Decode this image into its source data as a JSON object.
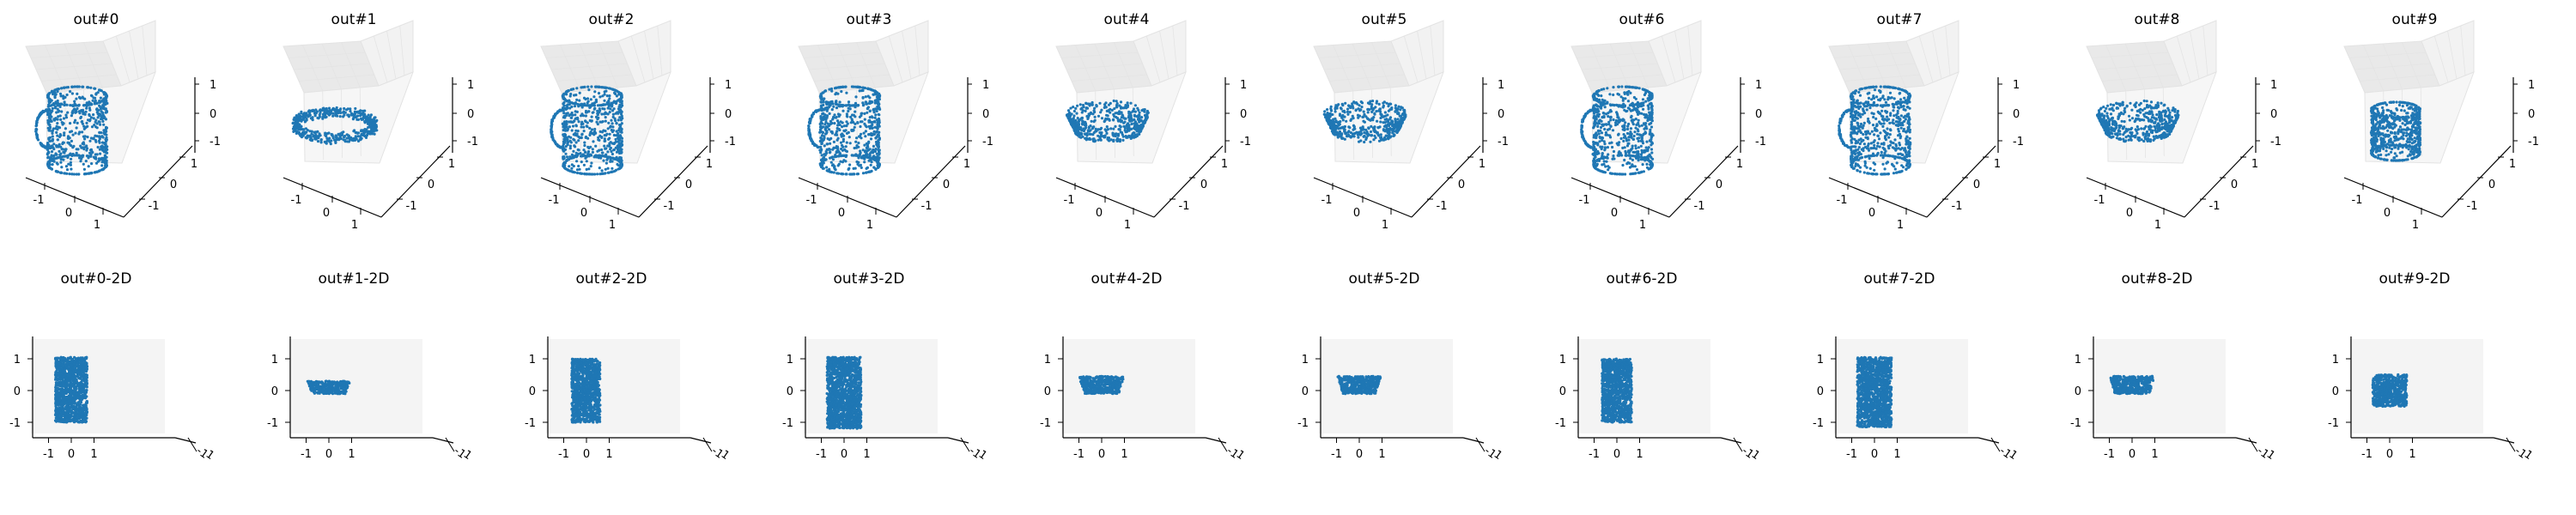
{
  "figure": {
    "background": "#ffffff",
    "marker_color": "#1f77b4",
    "pane_color_light": "#f2f2f2",
    "pane_color_dark": "#e9e9e9"
  },
  "chart_data": [
    {
      "type": "scatter",
      "projection": "3d",
      "title": "out#0",
      "shape": "mug",
      "xticks": [
        "-1",
        "0",
        "1"
      ],
      "yticks": [
        "-1",
        "0",
        "1"
      ],
      "zticks": [
        "-1",
        "0",
        "1"
      ],
      "xlim": [
        -1.5,
        1.5
      ],
      "ylim": [
        -1.5,
        1.5
      ],
      "zlim": [
        -1.5,
        1.5
      ]
    },
    {
      "type": "scatter",
      "projection": "3d",
      "title": "out#1",
      "shape": "ring",
      "xticks": [
        "-1",
        "0",
        "1"
      ],
      "yticks": [
        "-1",
        "0",
        "1"
      ],
      "zticks": [
        "-1",
        "0",
        "1"
      ],
      "xlim": [
        -1.5,
        1.5
      ],
      "ylim": [
        -1.5,
        1.5
      ],
      "zlim": [
        -1.5,
        1.5
      ]
    },
    {
      "type": "scatter",
      "projection": "3d",
      "title": "out#2",
      "shape": "mug",
      "xticks": [
        "-1",
        "0",
        "1"
      ],
      "yticks": [
        "-1",
        "0",
        "1"
      ],
      "zticks": [
        "-1",
        "0",
        "1"
      ],
      "xlim": [
        -1.5,
        1.5
      ],
      "ylim": [
        -1.5,
        1.5
      ],
      "zlim": [
        -1.5,
        1.5
      ]
    },
    {
      "type": "scatter",
      "projection": "3d",
      "title": "out#3",
      "shape": "mug",
      "xticks": [
        "-1",
        "0",
        "1"
      ],
      "yticks": [
        "-1",
        "0",
        "1"
      ],
      "zticks": [
        "-1",
        "0",
        "1"
      ],
      "xlim": [
        -1.5,
        1.5
      ],
      "ylim": [
        -1.5,
        1.5
      ],
      "zlim": [
        -1.5,
        1.5
      ]
    },
    {
      "type": "scatter",
      "projection": "3d",
      "title": "out#4",
      "shape": "bowl",
      "xticks": [
        "-1",
        "0",
        "1"
      ],
      "yticks": [
        "-1",
        "0",
        "1"
      ],
      "zticks": [
        "-1",
        "0",
        "1"
      ],
      "xlim": [
        -1.5,
        1.5
      ],
      "ylim": [
        -1.5,
        1.5
      ],
      "zlim": [
        -1.5,
        1.5
      ]
    },
    {
      "type": "scatter",
      "projection": "3d",
      "title": "out#5",
      "shape": "bowl",
      "xticks": [
        "-1",
        "0",
        "1"
      ],
      "yticks": [
        "-1",
        "0",
        "1"
      ],
      "zticks": [
        "-1",
        "0",
        "1"
      ],
      "xlim": [
        -1.5,
        1.5
      ],
      "ylim": [
        -1.5,
        1.5
      ],
      "zlim": [
        -1.5,
        1.5
      ]
    },
    {
      "type": "scatter",
      "projection": "3d",
      "title": "out#6",
      "shape": "mug",
      "xticks": [
        "-1",
        "0",
        "1"
      ],
      "yticks": [
        "-1",
        "0",
        "1"
      ],
      "zticks": [
        "-1",
        "0",
        "1"
      ],
      "xlim": [
        -1.5,
        1.5
      ],
      "ylim": [
        -1.5,
        1.5
      ],
      "zlim": [
        -1.5,
        1.5
      ]
    },
    {
      "type": "scatter",
      "projection": "3d",
      "title": "out#7",
      "shape": "mug",
      "xticks": [
        "-1",
        "0",
        "1"
      ],
      "yticks": [
        "-1",
        "0",
        "1"
      ],
      "zticks": [
        "-1",
        "0",
        "1"
      ],
      "xlim": [
        -1.5,
        1.5
      ],
      "ylim": [
        -1.5,
        1.5
      ],
      "zlim": [
        -1.5,
        1.5
      ]
    },
    {
      "type": "scatter",
      "projection": "3d",
      "title": "out#8",
      "shape": "bowl",
      "xticks": [
        "-1",
        "0",
        "1"
      ],
      "yticks": [
        "-1",
        "0",
        "1"
      ],
      "zticks": [
        "-1",
        "0",
        "1"
      ],
      "xlim": [
        -1.5,
        1.5
      ],
      "ylim": [
        -1.5,
        1.5
      ],
      "zlim": [
        -1.5,
        1.5
      ]
    },
    {
      "type": "scatter",
      "projection": "3d",
      "title": "out#9",
      "shape": "cup",
      "xticks": [
        "-1",
        "0",
        "1"
      ],
      "yticks": [
        "-1",
        "0",
        "1"
      ],
      "zticks": [
        "-1",
        "0",
        "1"
      ],
      "xlim": [
        -1.5,
        1.5
      ],
      "ylim": [
        -1.5,
        1.5
      ],
      "zlim": [
        -1.5,
        1.5
      ]
    },
    {
      "type": "scatter",
      "projection": "2d",
      "title": "out#0-2D",
      "xticks": [
        "-1",
        "0",
        "1"
      ],
      "yticks": [
        "-1",
        "0",
        "1"
      ],
      "xlim": [
        -1.6,
        1.6
      ],
      "ylim": [
        -1.6,
        1.6
      ],
      "extent": {
        "x": [
          -0.7,
          0.7
        ],
        "y": [
          -1.0,
          1.05
        ]
      }
    },
    {
      "type": "scatter",
      "projection": "2d",
      "title": "out#1-2D",
      "xticks": [
        "-1",
        "0",
        "1"
      ],
      "yticks": [
        "-1",
        "0",
        "1"
      ],
      "xlim": [
        -1.6,
        1.6
      ],
      "ylim": [
        -1.6,
        1.6
      ],
      "extent": {
        "x": [
          -0.95,
          0.95
        ],
        "y": [
          -0.1,
          0.3
        ]
      }
    },
    {
      "type": "scatter",
      "projection": "2d",
      "title": "out#2-2D",
      "xticks": [
        "-1",
        "0",
        "1"
      ],
      "yticks": [
        "-1",
        "0",
        "1"
      ],
      "xlim": [
        -1.6,
        1.6
      ],
      "ylim": [
        -1.6,
        1.6
      ],
      "extent": {
        "x": [
          -0.65,
          0.6
        ],
        "y": [
          -1.0,
          1.0
        ]
      }
    },
    {
      "type": "scatter",
      "projection": "2d",
      "title": "out#3-2D",
      "xticks": [
        "-1",
        "0",
        "1"
      ],
      "yticks": [
        "-1",
        "0",
        "1"
      ],
      "xlim": [
        -1.6,
        1.6
      ],
      "ylim": [
        -1.6,
        1.6
      ],
      "extent": {
        "x": [
          -0.75,
          0.75
        ],
        "y": [
          -1.2,
          1.05
        ]
      }
    },
    {
      "type": "scatter",
      "projection": "2d",
      "title": "out#4-2D",
      "xticks": [
        "-1",
        "0",
        "1"
      ],
      "yticks": [
        "-1",
        "0",
        "1"
      ],
      "xlim": [
        -1.6,
        1.6
      ],
      "ylim": [
        -1.6,
        1.6
      ],
      "extent": {
        "x": [
          -1.0,
          1.0
        ],
        "y": [
          -0.1,
          0.45
        ]
      }
    },
    {
      "type": "scatter",
      "projection": "2d",
      "title": "out#5-2D",
      "xticks": [
        "-1",
        "0",
        "1"
      ],
      "yticks": [
        "-1",
        "0",
        "1"
      ],
      "xlim": [
        -1.6,
        1.6
      ],
      "ylim": [
        -1.6,
        1.6
      ],
      "extent": {
        "x": [
          -0.95,
          0.95
        ],
        "y": [
          -0.1,
          0.45
        ]
      }
    },
    {
      "type": "scatter",
      "projection": "2d",
      "title": "out#6-2D",
      "xticks": [
        "-1",
        "0",
        "1"
      ],
      "yticks": [
        "-1",
        "0",
        "1"
      ],
      "xlim": [
        -1.6,
        1.6
      ],
      "ylim": [
        -1.6,
        1.6
      ],
      "extent": {
        "x": [
          -0.65,
          0.65
        ],
        "y": [
          -1.0,
          1.0
        ]
      }
    },
    {
      "type": "scatter",
      "projection": "2d",
      "title": "out#7-2D",
      "xticks": [
        "-1",
        "0",
        "1"
      ],
      "yticks": [
        "-1",
        "0",
        "1"
      ],
      "xlim": [
        -1.6,
        1.6
      ],
      "ylim": [
        -1.6,
        1.6
      ],
      "extent": {
        "x": [
          -0.75,
          0.75
        ],
        "y": [
          -1.15,
          1.05
        ]
      }
    },
    {
      "type": "scatter",
      "projection": "2d",
      "title": "out#8-2D",
      "xticks": [
        "-1",
        "0",
        "1"
      ],
      "yticks": [
        "-1",
        "0",
        "1"
      ],
      "xlim": [
        -1.6,
        1.6
      ],
      "ylim": [
        -1.6,
        1.6
      ],
      "extent": {
        "x": [
          -1.0,
          1.0
        ],
        "y": [
          -0.1,
          0.45
        ]
      }
    },
    {
      "type": "scatter",
      "projection": "2d",
      "title": "out#9-2D",
      "xticks": [
        "-1",
        "0",
        "1"
      ],
      "yticks": [
        "-1",
        "0",
        "1"
      ],
      "xlim": [
        -1.6,
        1.6
      ],
      "ylim": [
        -1.6,
        1.6
      ],
      "extent": {
        "x": [
          -0.75,
          0.75
        ],
        "y": [
          -0.5,
          0.5
        ]
      }
    }
  ]
}
